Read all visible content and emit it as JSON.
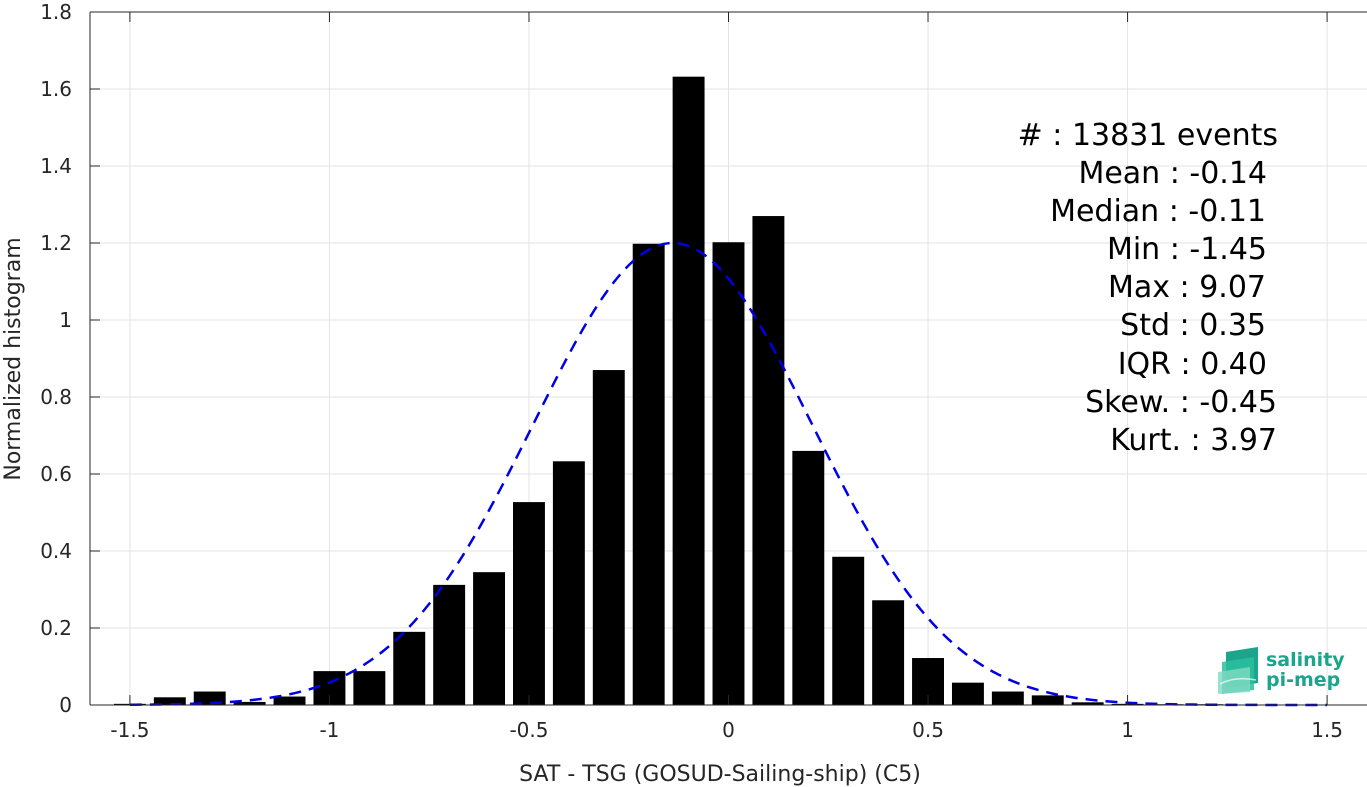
{
  "chart_data": {
    "type": "bar",
    "xlabel": "SAT - TSG (GOSUD-Sailing-ship) (C5)",
    "ylabel": "Normalized histogram",
    "xlim": [
      -1.6,
      1.6
    ],
    "ylim": [
      0,
      1.8
    ],
    "grid": true,
    "x_ticks": [
      -1.5,
      -1,
      -0.5,
      0,
      0.5,
      1,
      1.5
    ],
    "x_tick_labels": [
      "-1.5",
      "-1",
      "-0.5",
      "0",
      "0.5",
      "1",
      "1.5"
    ],
    "y_ticks": [
      0,
      0.2,
      0.4,
      0.6,
      0.8,
      1,
      1.2,
      1.4,
      1.6,
      1.8
    ],
    "y_tick_labels": [
      "0",
      "0.2",
      "0.4",
      "0.6",
      "0.8",
      "1",
      "1.2",
      "1.4",
      "1.6",
      "1.8"
    ],
    "bin_width": 0.1,
    "bar_color": "#000000",
    "bars": [
      {
        "x": -1.5,
        "value": 0.003
      },
      {
        "x": -1.4,
        "value": 0.02
      },
      {
        "x": -1.3,
        "value": 0.035
      },
      {
        "x": -1.2,
        "value": 0.008
      },
      {
        "x": -1.1,
        "value": 0.022
      },
      {
        "x": -1.0,
        "value": 0.088
      },
      {
        "x": -0.9,
        "value": 0.088
      },
      {
        "x": -0.8,
        "value": 0.19
      },
      {
        "x": -0.7,
        "value": 0.312
      },
      {
        "x": -0.6,
        "value": 0.345
      },
      {
        "x": -0.5,
        "value": 0.527
      },
      {
        "x": -0.4,
        "value": 0.633
      },
      {
        "x": -0.3,
        "value": 0.87
      },
      {
        "x": -0.2,
        "value": 1.198
      },
      {
        "x": -0.1,
        "value": 1.632
      },
      {
        "x": 0.0,
        "value": 1.202
      },
      {
        "x": 0.1,
        "value": 1.27
      },
      {
        "x": 0.2,
        "value": 0.66
      },
      {
        "x": 0.3,
        "value": 0.385
      },
      {
        "x": 0.4,
        "value": 0.272
      },
      {
        "x": 0.5,
        "value": 0.122
      },
      {
        "x": 0.6,
        "value": 0.058
      },
      {
        "x": 0.7,
        "value": 0.035
      },
      {
        "x": 0.8,
        "value": 0.025
      },
      {
        "x": 0.9,
        "value": 0.007
      },
      {
        "x": 1.0,
        "value": 0.003
      },
      {
        "x": 1.1,
        "value": 0.002
      },
      {
        "x": 1.2,
        "value": 0.002
      },
      {
        "x": 1.3,
        "value": 0.001
      },
      {
        "x": 1.4,
        "value": 0.001
      },
      {
        "x": 1.5,
        "value": 0.001
      }
    ],
    "fit_curve": {
      "type": "gaussian",
      "mean": -0.14,
      "std": 0.35,
      "peak": 1.2,
      "x_range": [
        -1.5,
        1.5
      ],
      "color": "#0000e6",
      "style": "dashed"
    }
  },
  "stats": {
    "events": "#  : 13831 events",
    "mean": "Mean : -0.14",
    "median": "Median : -0.11",
    "min": "Min : -1.45",
    "max": "Max : 9.07",
    "std": "Std : 0.35",
    "iqr": "IQR : 0.40",
    "skew": "Skew. : -0.45",
    "kurt": "Kurt. : 3.97"
  },
  "logo": {
    "line1": "salinity",
    "line2": "pi-mep",
    "color": "#1aa58c"
  }
}
